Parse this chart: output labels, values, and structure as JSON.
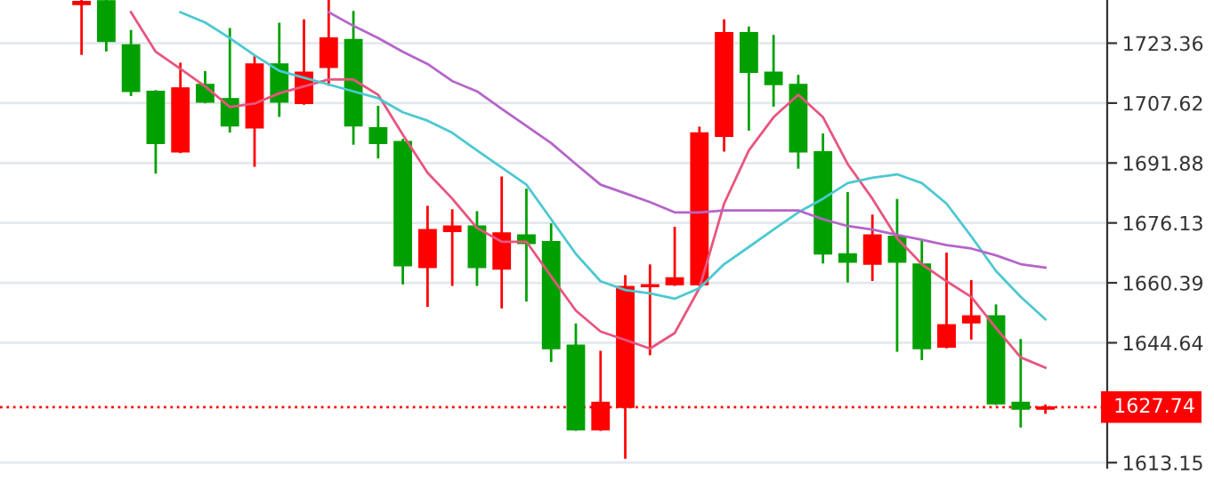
{
  "chart_data": {
    "type": "candlestick",
    "categories": [
      null,
      null,
      null,
      null,
      null,
      null,
      null,
      null,
      null,
      null,
      null,
      null,
      null,
      null,
      null,
      null,
      null,
      null,
      null,
      null,
      null,
      null,
      null,
      null,
      null,
      null,
      null,
      null,
      null,
      null,
      null,
      null,
      null,
      null,
      null,
      null,
      null,
      null,
      null,
      null
    ],
    "ohlc": [
      [
        1733.5,
        1734.5,
        1720.6,
        1734.3
      ],
      [
        1734.5,
        1734.6,
        1721.5,
        1723.8
      ],
      [
        1722.9,
        1726.5,
        1709.8,
        1710.7
      ],
      [
        1710.7,
        1710.7,
        1689.4,
        1697.0
      ],
      [
        1694.8,
        1717.9,
        1694.8,
        1711.6
      ],
      [
        1712.5,
        1715.7,
        1707.9,
        1707.9
      ],
      [
        1708.8,
        1727.0,
        1700.2,
        1701.6
      ],
      [
        1701.1,
        1719.7,
        1691.2,
        1717.9
      ],
      [
        1717.9,
        1728.4,
        1704.3,
        1707.9
      ],
      [
        1707.5,
        1729.3,
        1707.5,
        1715.7
      ],
      [
        1717.0,
        1734.5,
        1712.5,
        1724.7
      ],
      [
        1724.3,
        1731.5,
        1697.0,
        1701.6
      ],
      [
        1701.1,
        1706.6,
        1693.4,
        1697.0
      ],
      [
        1697.5,
        1697.9,
        1660.3,
        1664.9
      ],
      [
        1664.4,
        1680.3,
        1654.4,
        1674.4
      ],
      [
        1673.9,
        1679.4,
        1659.9,
        1675.3
      ],
      [
        1675.3,
        1678.9,
        1659.9,
        1664.4
      ],
      [
        1664.0,
        1688.0,
        1654.0,
        1673.5
      ],
      [
        1673.0,
        1684.8,
        1655.8,
        1670.7
      ],
      [
        1671.2,
        1675.7,
        1639.9,
        1643.1
      ],
      [
        1644.0,
        1649.4,
        1621.8,
        1621.8
      ],
      [
        1621.8,
        1642.2,
        1621.8,
        1629.0
      ],
      [
        1627.7,
        1662.1,
        1614.5,
        1659.4
      ],
      [
        1659.4,
        1664.9,
        1641.7,
        1659.9
      ],
      [
        1659.9,
        1674.8,
        1659.9,
        1661.7
      ],
      [
        1659.9,
        1701.1,
        1659.9,
        1699.8
      ],
      [
        1698.9,
        1729.3,
        1695.2,
        1726.1
      ],
      [
        1726.1,
        1727.4,
        1700.7,
        1715.7
      ],
      [
        1715.7,
        1725.2,
        1707.0,
        1712.5
      ],
      [
        1712.5,
        1714.7,
        1690.7,
        1694.8
      ],
      [
        1694.8,
        1699.3,
        1665.8,
        1668.0
      ],
      [
        1668.0,
        1683.9,
        1660.8,
        1665.8
      ],
      [
        1665.3,
        1678.0,
        1661.2,
        1673.0
      ],
      [
        1672.6,
        1682.1,
        1642.6,
        1665.8
      ],
      [
        1665.3,
        1671.2,
        1640.4,
        1643.1
      ],
      [
        1643.5,
        1668.0,
        1643.5,
        1649.4
      ],
      [
        1649.9,
        1660.8,
        1645.8,
        1651.7
      ],
      [
        1651.7,
        1654.4,
        1628.6,
        1628.6
      ],
      [
        1629.0,
        1645.3,
        1622.7,
        1627.2
      ],
      [
        1627.2,
        1628.1,
        1626.3,
        1627.74
      ]
    ],
    "colors": [
      "#ff0000",
      "#00a000",
      "#00a000",
      "#00a000",
      "#ff0000",
      "#00a000",
      "#00a000",
      "#ff0000",
      "#00a000",
      "#ff0000",
      "#ff0000",
      "#00a000",
      "#00a000",
      "#00a000",
      "#ff0000",
      "#ff0000",
      "#00a000",
      "#ff0000",
      "#00a000",
      "#00a000",
      "#00a000",
      "#ff0000",
      "#ff0000",
      "#ff0000",
      "#ff0000",
      "#ff0000",
      "#ff0000",
      "#00a000",
      "#00a000",
      "#00a000",
      "#00a000",
      "#00a000",
      "#ff0000",
      "#00a000",
      "#00a000",
      "#ff0000",
      "#ff0000",
      "#00a000",
      "#00a000",
      "#ff0000"
    ],
    "series": [
      {
        "type": "line",
        "color": "#e8557f",
        "values": [
          null,
          null,
          1731.5,
          1721.1,
          1716.6,
          1712.0,
          1706.6,
          1707.5,
          1710.2,
          1712.0,
          1713.8,
          1713.8,
          1709.8,
          1699.3,
          1689.3,
          1682.5,
          1674.8,
          1671.2,
          1671.2,
          1662.1,
          1653.1,
          1647.6,
          1645.4,
          1643.1,
          1647.2,
          1659.0,
          1681.2,
          1695.2,
          1703.9,
          1709.8,
          1703.9,
          1691.6,
          1682.5,
          1672.1,
          1665.3,
          1660.8,
          1656.7,
          1648.5,
          1640.8,
          1638.1
        ]
      },
      {
        "type": "line",
        "color": "#4cc9d0",
        "values": [
          null,
          null,
          null,
          null,
          1731.5,
          1728.8,
          1724.7,
          1720.2,
          1716.1,
          1714.3,
          1712.5,
          1710.7,
          1708.9,
          1705.2,
          1703.0,
          1699.8,
          1695.2,
          1690.7,
          1686.2,
          1677.1,
          1668.0,
          1660.8,
          1658.5,
          1657.6,
          1656.2,
          1659.0,
          1665.3,
          1669.8,
          1674.4,
          1678.9,
          1682.5,
          1686.6,
          1688.0,
          1688.9,
          1686.6,
          1681.2,
          1672.6,
          1663.5,
          1656.7,
          1650.8
        ]
      },
      {
        "type": "line",
        "color": "#b565c9",
        "values": [
          null,
          null,
          null,
          null,
          null,
          null,
          null,
          null,
          null,
          null,
          1731.5,
          1727.9,
          1724.7,
          1721.1,
          1717.9,
          1713.4,
          1710.7,
          1706.1,
          1701.6,
          1697.1,
          1691.6,
          1686.2,
          1683.9,
          1681.6,
          1678.9,
          1678.9,
          1679.4,
          1679.4,
          1679.4,
          1679.4,
          1677.1,
          1675.3,
          1674.4,
          1673.0,
          1671.7,
          1670.3,
          1669.4,
          1667.6,
          1665.3,
          1664.4
        ]
      }
    ],
    "ylim": [
      1611.8,
      1734.7
    ],
    "yticks": [
      1613.15,
      1644.64,
      1660.39,
      1676.13,
      1691.88,
      1707.62,
      1723.36
    ],
    "ref_lines": [
      {
        "axis": "y",
        "value": 1627.74,
        "label": "1627.74",
        "color": "#ff0000",
        "line_style": "dotted"
      }
    ],
    "grid": "y",
    "tick_labels": "y",
    "legend": false
  }
}
